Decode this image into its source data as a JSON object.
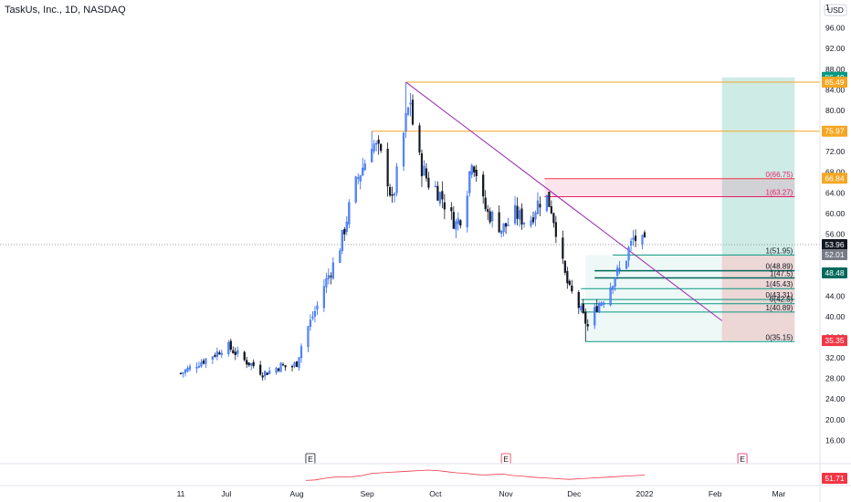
{
  "header": {
    "title": "TaskUs, Inc., 1D, NASDAQ",
    "currency": "USD"
  },
  "colors": {
    "up": "#2962ff",
    "up_fill": "#5b8def",
    "down": "#131722",
    "orange": "#f5a623",
    "red": "#f23645",
    "pink": "#e91e63",
    "teal": "#089981",
    "dark_green": "#00695c",
    "purple": "#9c27b0",
    "grey": "#787b86"
  },
  "chart_data": {
    "type": "candlestick",
    "ylim": [
      12,
      100
    ],
    "y_ticks": [
      16,
      20,
      24,
      28,
      32,
      36,
      40,
      44,
      48,
      52,
      56,
      60,
      64,
      68,
      72,
      76,
      80,
      84,
      88,
      92,
      96,
      100
    ],
    "x_ticks": [
      {
        "label": "11",
        "day": 0
      },
      {
        "label": "Jul",
        "day": 20
      },
      {
        "label": "Aug",
        "day": 51
      },
      {
        "label": "Sep",
        "day": 82
      },
      {
        "label": "Oct",
        "day": 112
      },
      {
        "label": "Nov",
        "day": 143
      },
      {
        "label": "Dec",
        "day": 173
      },
      {
        "label": "2022",
        "day": 204
      },
      {
        "label": "Feb",
        "day": 235
      },
      {
        "label": "Mar",
        "day": 263
      }
    ],
    "x_range_days": [
      -3,
      276
    ],
    "last_day": 204,
    "close_anchors": [
      [
        0,
        29
      ],
      [
        4,
        30
      ],
      [
        8,
        31
      ],
      [
        12,
        32
      ],
      [
        16,
        33
      ],
      [
        20,
        34.5
      ],
      [
        24,
        33
      ],
      [
        28,
        31.5
      ],
      [
        32,
        30.5
      ],
      [
        36,
        29
      ],
      [
        40,
        29.5
      ],
      [
        44,
        30.5
      ],
      [
        48,
        30
      ],
      [
        51,
        31
      ],
      [
        54,
        36
      ],
      [
        57,
        39
      ],
      [
        60,
        42
      ],
      [
        63,
        46
      ],
      [
        66,
        49
      ],
      [
        69,
        52
      ],
      [
        72,
        57
      ],
      [
        75,
        63
      ],
      [
        78,
        67
      ],
      [
        81,
        70
      ],
      [
        84,
        74
      ],
      [
        87,
        72
      ],
      [
        90,
        69
      ],
      [
        93,
        62
      ],
      [
        96,
        70
      ],
      [
        99,
        78
      ],
      [
        101,
        82
      ],
      [
        103,
        73
      ],
      [
        106,
        69
      ],
      [
        109,
        66
      ],
      [
        112,
        65
      ],
      [
        115,
        63
      ],
      [
        118,
        60
      ],
      [
        121,
        58
      ],
      [
        124,
        60
      ],
      [
        126,
        65
      ],
      [
        128,
        71
      ],
      [
        130,
        68
      ],
      [
        132,
        63
      ],
      [
        135,
        60
      ],
      [
        138,
        59
      ],
      [
        141,
        57
      ],
      [
        144,
        58
      ],
      [
        147,
        60
      ],
      [
        150,
        59
      ],
      [
        153,
        58
      ],
      [
        155,
        60
      ],
      [
        157,
        62
      ],
      [
        159,
        63
      ],
      [
        161,
        63
      ],
      [
        163,
        61
      ],
      [
        165,
        57
      ],
      [
        167,
        52
      ],
      [
        169,
        48
      ],
      [
        171,
        45
      ],
      [
        173,
        44
      ],
      [
        175,
        42
      ],
      [
        177,
        40
      ],
      [
        179,
        38
      ],
      [
        181,
        40
      ],
      [
        183,
        42
      ],
      [
        185,
        43
      ],
      [
        187,
        44
      ],
      [
        189,
        46
      ],
      [
        191,
        48
      ],
      [
        193,
        49
      ],
      [
        195,
        50
      ],
      [
        197,
        53
      ],
      [
        199,
        55
      ],
      [
        201,
        55
      ],
      [
        204,
        53.96
      ]
    ],
    "candle_overrides": [
      {
        "day": 99,
        "high": 85.49
      },
      {
        "day": 178,
        "low": 35.15
      },
      {
        "day": 84,
        "high": 75.97
      }
    ],
    "price_badges": [
      {
        "label": "86.40",
        "value": 86.4,
        "color": "#089981"
      },
      {
        "label": "85.49",
        "value": 85.49,
        "color": "#f5a623"
      },
      {
        "label": "75.97",
        "value": 75.97,
        "color": "#f5a623"
      },
      {
        "label": "66.84",
        "value": 66.84,
        "color": "#f5a623"
      },
      {
        "label": "53.96",
        "value": 53.96,
        "color": "#131722"
      },
      {
        "label": "52.01",
        "value": 52.01,
        "color": "#787b86"
      },
      {
        "label": "48.48",
        "value": 48.48,
        "color": "#00695c"
      },
      {
        "label": "35.35",
        "value": 35.35,
        "color": "#f23645"
      }
    ],
    "horizontal_lines": [
      {
        "value": 85.49,
        "from_day": 99,
        "color": "#f5a623"
      },
      {
        "value": 75.97,
        "from_day": 84,
        "color": "#f5a623"
      }
    ],
    "fib_upper": {
      "from_day": 160,
      "to_day": 270,
      "levels": [
        {
          "label": "0(66.75)",
          "value": 66.75
        },
        {
          "label": "1(63.27)",
          "value": 63.27
        }
      ]
    },
    "fib_lower": {
      "from_day": 178,
      "to_day": 270,
      "levels": [
        {
          "label": "1(51.95)",
          "value": 51.95
        },
        {
          "label": "0(48.89)",
          "value": 48.89
        },
        {
          "label": "1(47.5)",
          "value": 47.5
        },
        {
          "label": "1(45.43)",
          "value": 45.43
        },
        {
          "label": "0(43.31)",
          "value": 43.31
        },
        {
          "label": "0(42.5)",
          "value": 42.5
        },
        {
          "label": "1(40.89)",
          "value": 40.89
        },
        {
          "label": "0(35.15)",
          "value": 35.15
        }
      ]
    },
    "trendline": {
      "from": [
        99,
        85.49
      ],
      "to": [
        238,
        39.2
      ]
    },
    "long_position": {
      "from_day": 238,
      "to_day": 270,
      "entry": 52.01,
      "target": 86.4,
      "stop": 35.35
    },
    "earnings_markers": [
      {
        "label": "E",
        "day": 57
      },
      {
        "label": "E",
        "day": 143
      },
      {
        "label": "E",
        "day": 247
      }
    ],
    "oscillator": {
      "value_label": "51.71",
      "values": [
        32,
        34,
        40,
        44,
        45,
        46,
        50,
        58,
        60,
        62,
        64,
        66,
        68,
        70,
        68,
        64,
        60,
        58,
        54,
        52,
        54,
        55,
        50,
        48,
        44,
        42,
        40,
        38,
        36,
        38,
        40,
        42,
        44,
        46,
        48,
        50,
        51.71
      ]
    }
  }
}
